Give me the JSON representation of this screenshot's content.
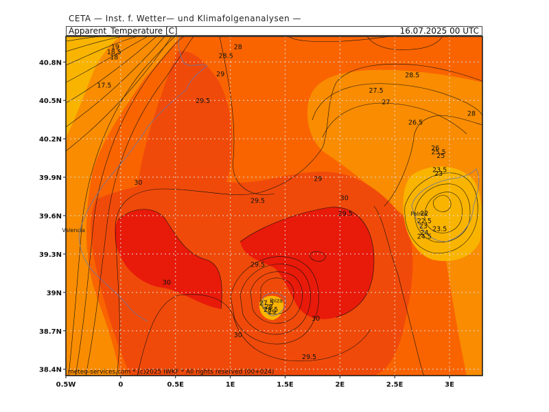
{
  "header": {
    "title": "CETA — Inst. f. Wetter— und Klimafolgenanalysen —",
    "parameter": "Apparent_Temperature [C]",
    "datetime": "16.07.2025 00 UTC"
  },
  "map": {
    "lon_range": [
      -0.5,
      3.3
    ],
    "lat_range": [
      38.35,
      41.0
    ],
    "x_ticks": [
      {
        "value": -0.5,
        "label": "0.5W"
      },
      {
        "value": 0,
        "label": "0"
      },
      {
        "value": 0.5,
        "label": "0.5E"
      },
      {
        "value": 1,
        "label": "1E"
      },
      {
        "value": 1.5,
        "label": "1.5E"
      },
      {
        "value": 2,
        "label": "2E"
      },
      {
        "value": 2.5,
        "label": "2.5E"
      },
      {
        "value": 3,
        "label": "3E"
      }
    ],
    "y_ticks": [
      {
        "value": 38.4,
        "label": "38.4N"
      },
      {
        "value": 38.7,
        "label": "38.7N"
      },
      {
        "value": 39.0,
        "label": "39N"
      },
      {
        "value": 39.3,
        "label": "39.3N"
      },
      {
        "value": 39.6,
        "label": "39.6N"
      },
      {
        "value": 39.9,
        "label": "39.9N"
      },
      {
        "value": 40.2,
        "label": "40.2N"
      },
      {
        "value": 40.5,
        "label": "40.5N"
      },
      {
        "value": 40.8,
        "label": "40.8N"
      }
    ],
    "colors": {
      "band_18_26": "#f9b400",
      "band_26_28": "#f98c00",
      "band_28_29": "#f96400",
      "band_29_30": "#f04a0a",
      "band_30_plus": "#e81a0a"
    },
    "place_labels": [
      {
        "name": "Valencia",
        "lon": -0.43,
        "lat": 39.47
      },
      {
        "name": "Palma",
        "lon": 2.72,
        "lat": 39.6
      },
      {
        "name": "Ibiza",
        "lon": 1.42,
        "lat": 38.92
      }
    ],
    "contour_labels": [
      {
        "text": "19",
        "lon": -0.05,
        "lat": 40.9
      },
      {
        "text": "18.5",
        "lon": -0.06,
        "lat": 40.86
      },
      {
        "text": "18",
        "lon": -0.06,
        "lat": 40.82
      },
      {
        "text": "17.5",
        "lon": -0.15,
        "lat": 40.6
      },
      {
        "text": "28",
        "lon": 1.07,
        "lat": 40.9
      },
      {
        "text": "28.5",
        "lon": 0.96,
        "lat": 40.83
      },
      {
        "text": "29",
        "lon": 0.91,
        "lat": 40.69
      },
      {
        "text": "29.5",
        "lon": 0.75,
        "lat": 40.48
      },
      {
        "text": "28.5",
        "lon": 2.66,
        "lat": 40.68
      },
      {
        "text": "27.5",
        "lon": 2.33,
        "lat": 40.56
      },
      {
        "text": "27",
        "lon": 2.42,
        "lat": 40.47
      },
      {
        "text": "28",
        "lon": 3.2,
        "lat": 40.38
      },
      {
        "text": "26.5",
        "lon": 2.69,
        "lat": 40.31
      },
      {
        "text": "26",
        "lon": 2.87,
        "lat": 40.11
      },
      {
        "text": "25.5",
        "lon": 2.9,
        "lat": 40.08
      },
      {
        "text": "25",
        "lon": 2.92,
        "lat": 40.05
      },
      {
        "text": "23.5",
        "lon": 2.91,
        "lat": 39.94
      },
      {
        "text": "23",
        "lon": 2.9,
        "lat": 39.91
      },
      {
        "text": "30",
        "lon": 0.16,
        "lat": 39.84
      },
      {
        "text": "29",
        "lon": 1.8,
        "lat": 39.87
      },
      {
        "text": "29.5",
        "lon": 1.25,
        "lat": 39.7
      },
      {
        "text": "30",
        "lon": 2.04,
        "lat": 39.72
      },
      {
        "text": "29.5",
        "lon": 2.05,
        "lat": 39.6
      },
      {
        "text": "22",
        "lon": 2.77,
        "lat": 39.6
      },
      {
        "text": "22.5",
        "lon": 2.77,
        "lat": 39.54
      },
      {
        "text": "23",
        "lon": 2.76,
        "lat": 39.5
      },
      {
        "text": "23.5",
        "lon": 2.91,
        "lat": 39.48
      },
      {
        "text": "24",
        "lon": 2.77,
        "lat": 39.45
      },
      {
        "text": "24.5",
        "lon": 2.77,
        "lat": 39.42
      },
      {
        "text": "29.5",
        "lon": 1.25,
        "lat": 39.2
      },
      {
        "text": "30",
        "lon": 0.42,
        "lat": 39.06
      },
      {
        "text": "27.5",
        "lon": 1.33,
        "lat": 38.9
      },
      {
        "text": "28",
        "lon": 1.35,
        "lat": 38.87
      },
      {
        "text": "28.5",
        "lon": 1.37,
        "lat": 38.85
      },
      {
        "text": "29",
        "lon": 1.38,
        "lat": 38.83
      },
      {
        "text": "30",
        "lon": 1.78,
        "lat": 38.78
      },
      {
        "text": "30",
        "lon": 1.07,
        "lat": 38.65
      },
      {
        "text": "29.5",
        "lon": 1.72,
        "lat": 38.48
      }
    ]
  },
  "footer": {
    "copyright": "meteo-services.com * (c)2025 IWKF * All rights reserved (00+024)"
  }
}
